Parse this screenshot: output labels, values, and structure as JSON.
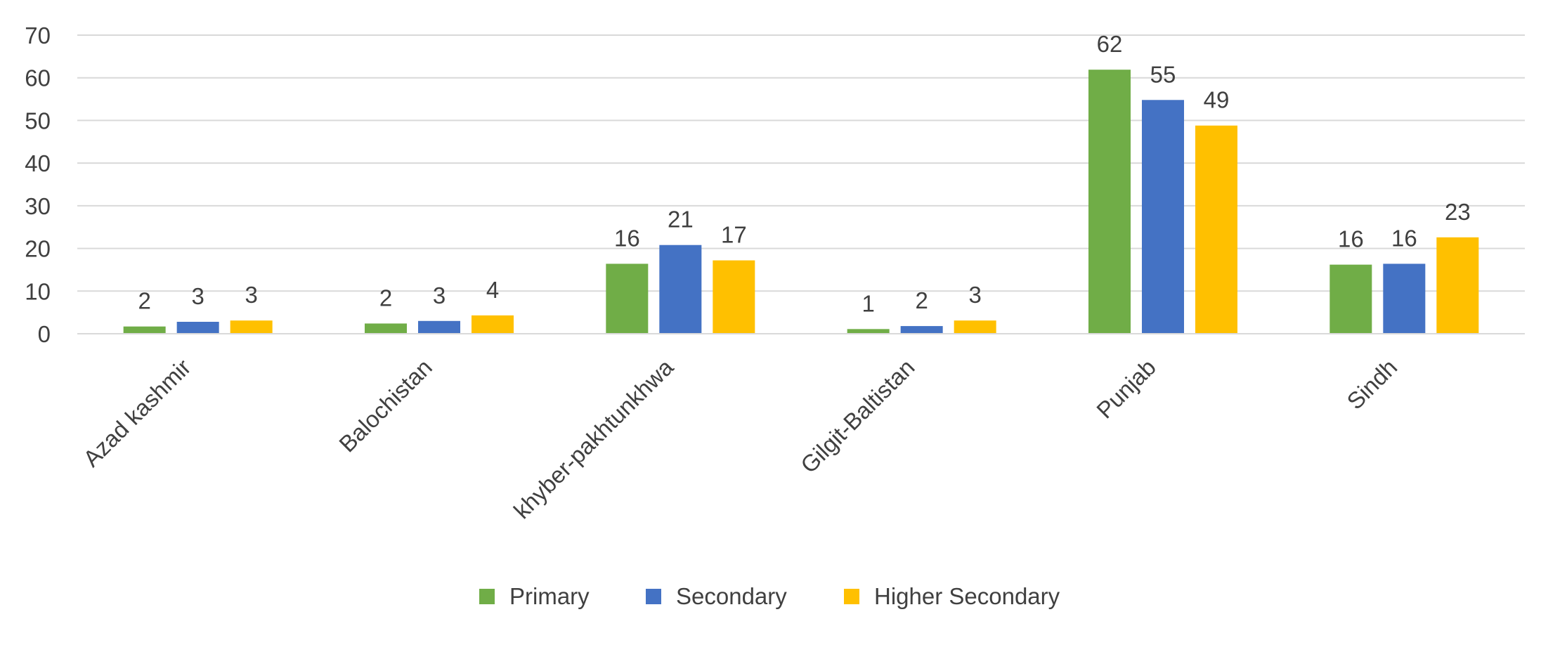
{
  "chart_data": {
    "type": "bar",
    "title": "",
    "xlabel": "",
    "ylabel": "",
    "categories": [
      "Azad kashmir",
      "Balochistan",
      "khyber-pakhtunkhwa",
      "Gilgit-Baltistan",
      "Punjab",
      "Sindh"
    ],
    "series": [
      {
        "name": "Primary",
        "color": "#70AD47",
        "values": [
          1.7,
          2.4,
          16.4,
          1.1,
          61.9,
          16.2
        ],
        "labels": [
          "2",
          "2",
          "16",
          "1",
          "62",
          "16"
        ]
      },
      {
        "name": "Secondary",
        "color": "#4472C4",
        "values": [
          2.8,
          3.0,
          20.8,
          1.8,
          54.8,
          16.4
        ],
        "labels": [
          "3",
          "3",
          "21",
          "2",
          "55",
          "16"
        ]
      },
      {
        "name": "Higher Secondary",
        "color": "#FFC000",
        "values": [
          3.1,
          4.3,
          17.2,
          3.1,
          48.8,
          22.6
        ],
        "labels": [
          "3",
          "4",
          "17",
          "3",
          "49",
          "23"
        ]
      }
    ],
    "ylim": [
      0,
      70
    ],
    "yticks": [
      "0",
      "10",
      "20",
      "30",
      "40",
      "50",
      "60",
      "70"
    ],
    "grid": true,
    "legend_position": "bottom",
    "colors": {
      "gridline": "#D9D9D9",
      "text": "#404040"
    }
  }
}
